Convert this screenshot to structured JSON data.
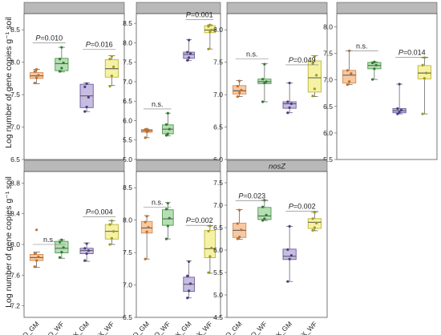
{
  "colors": {
    "GQ_GM": {
      "fill": "#f6c9a3",
      "stroke": "#d98a4d",
      "point": "#c0702e"
    },
    "GQ_WF": {
      "fill": "#b6deb4",
      "stroke": "#4e9a4a",
      "point": "#2f7d33"
    },
    "NX_GM": {
      "fill": "#c7bde0",
      "stroke": "#6d5a9e",
      "point": "#4e3c86"
    },
    "NX_WF": {
      "fill": "#f5f2a6",
      "stroke": "#bdb53a",
      "point": "#a19a1d"
    }
  },
  "y_axis_label": "Log number of gene copies g⁻¹ soil",
  "chart_data": [
    {
      "type": "box",
      "strip_label": "",
      "ylim": [
        6.5,
        8.75
      ],
      "yticks": [
        "6.5",
        "7.0",
        "7.5",
        "8.0",
        "8.5"
      ],
      "categories": [
        "GQ_GM",
        "GQ_WF",
        "NX_GM",
        "NX_WF"
      ],
      "boxes": [
        {
          "min": 7.67,
          "q1": 7.75,
          "median": 7.79,
          "q3": 7.84,
          "max": 7.89,
          "points": [
            7.68,
            7.76,
            7.8,
            7.86,
            7.89
          ]
        },
        {
          "min": 7.85,
          "q1": 7.87,
          "median": 7.98,
          "q3": 8.06,
          "max": 8.23,
          "points": [
            7.86,
            7.91,
            7.99,
            8.05,
            8.23
          ]
        },
        {
          "min": 7.24,
          "q1": 7.3,
          "median": 7.48,
          "q3": 7.66,
          "max": 7.68,
          "points": [
            7.24,
            7.31,
            7.46,
            7.62,
            7.67
          ]
        },
        {
          "min": 7.64,
          "q1": 7.77,
          "median": 7.9,
          "q3": 8.04,
          "max": 8.1,
          "points": [
            7.63,
            7.79,
            7.93,
            8.05,
            8.09
          ]
        }
      ],
      "comparisons": [
        {
          "from": 0,
          "to": 1,
          "label": "P=0.010",
          "y": 8.3
        },
        {
          "from": 2,
          "to": 3,
          "label": "P=0.016",
          "y": 8.2
        }
      ]
    },
    {
      "type": "box",
      "strip_label": "",
      "ylim": [
        5.0,
        8.75
      ],
      "yticks": [
        "5.0",
        "5.5",
        "6.0",
        "6.5",
        "7.0",
        "7.5",
        "8.0",
        "8.5"
      ],
      "categories": [
        "GQ_GM",
        "GQ_WF",
        "NX_GM",
        "NX_WF"
      ],
      "boxes": [
        {
          "min": 5.56,
          "q1": 5.7,
          "median": 5.74,
          "q3": 5.77,
          "max": 5.78,
          "points": [
            5.56,
            5.71,
            5.74,
            5.77,
            5.78
          ]
        },
        {
          "min": 5.61,
          "q1": 5.66,
          "median": 5.78,
          "q3": 5.89,
          "max": 6.19,
          "points": [
            5.62,
            5.66,
            5.78,
            5.9,
            6.19
          ]
        },
        {
          "min": 7.54,
          "q1": 7.6,
          "median": 7.7,
          "q3": 7.76,
          "max": 8.08,
          "points": [
            7.55,
            7.62,
            7.72,
            7.76,
            8.07
          ]
        },
        {
          "min": 7.84,
          "q1": 8.26,
          "median": 8.33,
          "q3": 8.44,
          "max": 8.46,
          "points": [
            7.84,
            8.28,
            8.33,
            8.42,
            8.46
          ]
        }
      ],
      "comparisons": [
        {
          "from": 0,
          "to": 1,
          "label": "n.s.",
          "y": 6.3
        },
        {
          "from": 2,
          "to": 3,
          "label": "P=0.001",
          "y": 8.6
        }
      ]
    },
    {
      "type": "box",
      "strip_label": "",
      "ylim": [
        6.0,
        8.25
      ],
      "yticks": [
        "6.0",
        "6.5",
        "7.0",
        "7.5",
        "8.0"
      ],
      "categories": [
        "GQ_GM",
        "GQ_WF",
        "NX_GM",
        "NX_WF"
      ],
      "boxes": [
        {
          "min": 6.97,
          "q1": 7.01,
          "median": 7.06,
          "q3": 7.14,
          "max": 7.22,
          "points": [
            6.97,
            7.03,
            7.07,
            7.13,
            7.21
          ]
        },
        {
          "min": 6.89,
          "q1": 7.17,
          "median": 7.2,
          "q3": 7.24,
          "max": 7.48,
          "points": [
            6.89,
            7.18,
            7.2,
            7.24,
            7.47
          ]
        },
        {
          "min": 6.72,
          "q1": 6.79,
          "median": 6.86,
          "q3": 6.89,
          "max": 7.18,
          "points": [
            6.72,
            6.8,
            6.86,
            6.89,
            7.18
          ]
        },
        {
          "min": 6.97,
          "q1": 7.04,
          "median": 7.26,
          "q3": 7.52,
          "max": 7.6,
          "points": [
            6.98,
            7.09,
            7.3,
            7.48,
            7.59
          ]
        }
      ],
      "comparisons": [
        {
          "from": 0,
          "to": 1,
          "label": "n.s.",
          "y": 7.55
        },
        {
          "from": 2,
          "to": 3,
          "label": "P=0.049",
          "y": 7.46
        }
      ]
    },
    {
      "type": "box",
      "strip_label": "",
      "ylim": [
        5.5,
        8.25
      ],
      "yticks": [
        "5.5",
        "6.0",
        "6.5",
        "7.0",
        "7.5",
        "8.0"
      ],
      "categories": [
        "GQ_GM",
        "GQ_WF",
        "NX_GM",
        "NX_WF"
      ],
      "boxes": [
        {
          "min": 6.91,
          "q1": 6.94,
          "median": 7.09,
          "q3": 7.18,
          "max": 7.55,
          "points": [
            6.91,
            6.97,
            7.12,
            7.18,
            7.55
          ]
        },
        {
          "min": 7.01,
          "q1": 7.21,
          "median": 7.27,
          "q3": 7.33,
          "max": 7.34,
          "points": [
            7.01,
            7.21,
            7.28,
            7.32,
            7.34
          ]
        },
        {
          "min": 6.36,
          "q1": 6.38,
          "median": 6.42,
          "q3": 6.46,
          "max": 6.92,
          "points": [
            6.36,
            6.39,
            6.43,
            6.46,
            6.92
          ]
        },
        {
          "min": 6.36,
          "q1": 7.02,
          "median": 7.13,
          "q3": 7.27,
          "max": 7.42,
          "points": [
            6.36,
            7.03,
            7.13,
            7.28,
            7.42
          ]
        }
      ],
      "comparisons": [
        {
          "from": 0,
          "to": 1,
          "label": "n.s.",
          "y": 7.55
        },
        {
          "from": 2,
          "to": 3,
          "label": "P=0.014",
          "y": 7.43
        }
      ]
    },
    {
      "type": "box",
      "strip_label": "",
      "ylim": [
        7.05,
        8.95
      ],
      "yticks": [
        "7.2",
        "7.6",
        "8.0",
        "8.4",
        "8.8"
      ],
      "categories": [
        "GQ_GM",
        "GQ_WF",
        "NX_GM",
        "NX_WF"
      ],
      "boxes": [
        {
          "min": 7.7,
          "q1": 7.79,
          "median": 7.83,
          "q3": 7.87,
          "max": 7.9,
          "points": [
            7.71,
            7.79,
            7.84,
            7.88,
            8.19
          ]
        },
        {
          "min": 7.82,
          "q1": 7.89,
          "median": 7.95,
          "q3": 8.04,
          "max": 8.06,
          "points": [
            7.83,
            7.9,
            7.96,
            8.03,
            8.06
          ]
        },
        {
          "min": 7.78,
          "q1": 7.88,
          "median": 7.92,
          "q3": 7.95,
          "max": 8.02,
          "points": [
            7.79,
            7.88,
            7.92,
            7.95,
            8.01
          ]
        },
        {
          "min": 8.0,
          "q1": 8.07,
          "median": 8.17,
          "q3": 8.26,
          "max": 8.31,
          "points": [
            8.0,
            8.08,
            8.17,
            8.26,
            8.31
          ]
        }
      ],
      "comparisons": [
        {
          "from": 0,
          "to": 1,
          "label": "n.s.",
          "y": 8.0
        },
        {
          "from": 2,
          "to": 3,
          "label": "P=0.004",
          "y": 8.36
        }
      ]
    },
    {
      "type": "box",
      "strip_label": "",
      "ylim": [
        6.5,
        8.75
      ],
      "yticks": [
        "6.5",
        "7.0",
        "7.5",
        "8.0",
        "8.5"
      ],
      "categories": [
        "GQ_GM",
        "GQ_WF",
        "NX_GM",
        "NX_WF"
      ],
      "boxes": [
        {
          "min": 7.4,
          "q1": 7.8,
          "median": 7.88,
          "q3": 7.98,
          "max": 8.07,
          "points": [
            7.4,
            7.82,
            7.89,
            7.97,
            8.06
          ]
        },
        {
          "min": 7.71,
          "q1": 7.92,
          "median": 8.02,
          "q3": 8.16,
          "max": 8.27,
          "points": [
            7.71,
            7.91,
            8.03,
            8.17,
            8.26
          ]
        },
        {
          "min": 6.8,
          "q1": 6.9,
          "median": 7.01,
          "q3": 7.12,
          "max": 7.37,
          "points": [
            6.8,
            6.91,
            7.02,
            7.14,
            7.36
          ]
        },
        {
          "min": 7.18,
          "q1": 7.42,
          "median": 7.56,
          "q3": 7.84,
          "max": 7.91,
          "points": [
            7.19,
            7.44,
            7.57,
            7.83,
            7.91
          ]
        }
      ],
      "comparisons": [
        {
          "from": 0,
          "to": 1,
          "label": "n.s.",
          "y": 8.2
        },
        {
          "from": 2,
          "to": 3,
          "label": "P=0.002",
          "y": 7.92
        }
      ]
    },
    {
      "type": "box",
      "strip_label": "nosZ",
      "ylim": [
        4.5,
        7.75
      ],
      "yticks": [
        "4.5",
        "5.0",
        "5.5",
        "6.0",
        "6.5",
        "7.0",
        "7.5"
      ],
      "categories": [
        "GQ_GM",
        "GQ_WF",
        "NX_GM",
        "NX_WF"
      ],
      "boxes": [
        {
          "min": 6.24,
          "q1": 6.28,
          "median": 6.44,
          "q3": 6.6,
          "max": 6.9,
          "points": [
            6.25,
            6.29,
            6.45,
            6.59,
            6.89
          ]
        },
        {
          "min": 6.66,
          "q1": 6.68,
          "median": 6.76,
          "q3": 6.95,
          "max": 7.11,
          "points": [
            6.66,
            6.7,
            6.78,
            6.96,
            7.11
          ]
        },
        {
          "min": 5.3,
          "q1": 5.79,
          "median": 5.86,
          "q3": 6.02,
          "max": 6.53,
          "points": [
            5.3,
            5.8,
            5.88,
            6.01,
            6.53
          ]
        },
        {
          "min": 6.43,
          "q1": 6.48,
          "median": 6.62,
          "q3": 6.7,
          "max": 6.84,
          "points": [
            6.44,
            6.5,
            6.6,
            6.7,
            6.84
          ]
        }
      ],
      "comparisons": [
        {
          "from": 0,
          "to": 1,
          "label": "P=0.023",
          "y": 7.1
        },
        {
          "from": 2,
          "to": 3,
          "label": "P=0.002",
          "y": 6.87
        }
      ]
    }
  ]
}
